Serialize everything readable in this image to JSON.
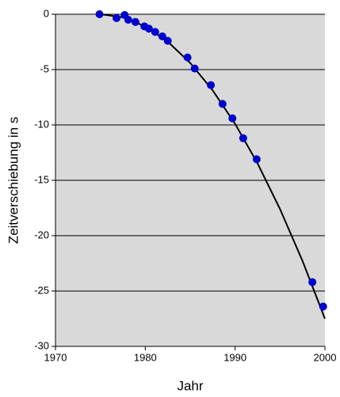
{
  "chart_data": {
    "type": "scatter",
    "x_label": "Jahr",
    "y_label": "Zeitverschiebung in s",
    "xlim": [
      1970,
      2000
    ],
    "xticks": [
      1970,
      1980,
      1990,
      2000
    ],
    "ylim": [
      -30,
      0
    ],
    "yticks": [
      0,
      -5,
      -10,
      -15,
      -20,
      -25,
      -30
    ],
    "grid": true,
    "background": "#d9d9d9",
    "series": [
      {
        "type": "scatter",
        "color": "#0000cc",
        "x": [
          1974.9,
          1976.8,
          1977.7,
          1978.1,
          1978.9,
          1979.9,
          1980.4,
          1981.1,
          1981.9,
          1982.5,
          1984.7,
          1985.5,
          1987.3,
          1988.6,
          1989.7,
          1990.9,
          1992.4,
          1998.6,
          1999.8
        ],
        "values": [
          0,
          -0.35,
          -0.07,
          -0.5,
          -0.7,
          -1.1,
          -1.3,
          -1.6,
          -2.0,
          -2.4,
          -3.9,
          -4.9,
          -6.4,
          -8.1,
          -9.4,
          -11.2,
          -13.1,
          -24.2,
          -26.4
        ]
      },
      {
        "type": "line",
        "color": "#000000",
        "x": [
          1975,
          1977.5,
          1980,
          1982.5,
          1985,
          1987.5,
          1990,
          1992.5,
          1995,
          1997.5,
          2000
        ],
        "values": [
          0,
          -0.275,
          -1.1,
          -2.475,
          -4.4,
          -6.875,
          -9.9,
          -13.475,
          -17.6,
          -22.275,
          -27.5
        ]
      }
    ]
  }
}
